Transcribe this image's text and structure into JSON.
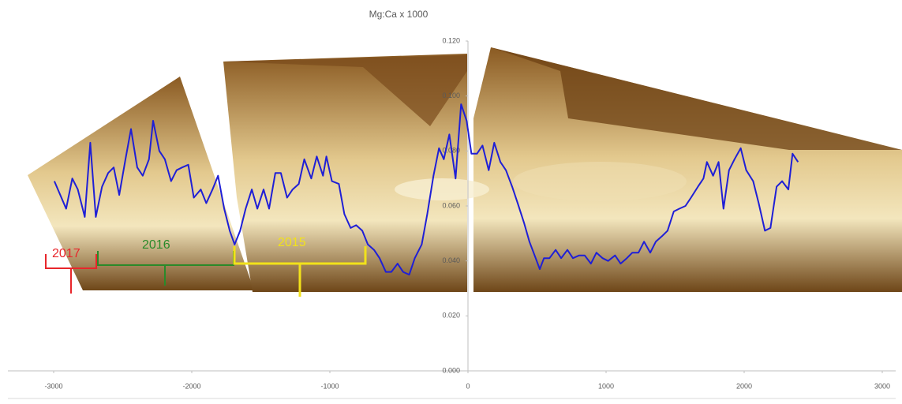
{
  "chart_data": {
    "type": "line",
    "title": "Mg:Ca x 1000",
    "x": [
      -2995,
      -2910,
      -2865,
      -2825,
      -2775,
      -2735,
      -2695,
      -2650,
      -2605,
      -2565,
      -2525,
      -2480,
      -2440,
      -2395,
      -2355,
      -2310,
      -2280,
      -2235,
      -2195,
      -2150,
      -2110,
      -2070,
      -2025,
      -1985,
      -1935,
      -1895,
      -1850,
      -1810,
      -1765,
      -1725,
      -1690,
      -1650,
      -1610,
      -1565,
      -1525,
      -1480,
      -1440,
      -1395,
      -1355,
      -1310,
      -1270,
      -1225,
      -1185,
      -1135,
      -1095,
      -1050,
      -1025,
      -985,
      -935,
      -895,
      -850,
      -810,
      -765,
      -725,
      -680,
      -640,
      -595,
      -555,
      -510,
      -470,
      -425,
      -385,
      -335,
      -295,
      -250,
      -210,
      -175,
      -135,
      -90,
      -50,
      -10,
      25,
      65,
      105,
      150,
      190,
      235,
      275,
      320,
      360,
      405,
      445,
      490,
      520,
      550,
      590,
      635,
      675,
      720,
      760,
      805,
      845,
      890,
      930,
      975,
      1015,
      1065,
      1105,
      1150,
      1190,
      1235,
      1275,
      1320,
      1360,
      1405,
      1445,
      1490,
      1530,
      1575,
      1615,
      1665,
      1705,
      1730,
      1775,
      1815,
      1850,
      1890,
      1930,
      1975,
      2015,
      2065,
      2105,
      2150,
      2190,
      2235,
      2275,
      2320,
      2350,
      2390
    ],
    "series": [
      {
        "color": "#1f1fd6",
        "values": [
          0.069,
          0.059,
          0.07,
          0.066,
          0.056,
          0.083,
          0.056,
          0.067,
          0.072,
          0.074,
          0.064,
          0.077,
          0.088,
          0.074,
          0.071,
          0.077,
          0.091,
          0.08,
          0.077,
          0.069,
          0.073,
          0.074,
          0.075,
          0.063,
          0.066,
          0.061,
          0.066,
          0.071,
          0.059,
          0.051,
          0.046,
          0.051,
          0.059,
          0.066,
          0.059,
          0.066,
          0.059,
          0.072,
          0.072,
          0.063,
          0.066,
          0.068,
          0.077,
          0.07,
          0.078,
          0.071,
          0.078,
          0.069,
          0.068,
          0.057,
          0.052,
          0.053,
          0.051,
          0.046,
          0.044,
          0.041,
          0.036,
          0.036,
          0.039,
          0.036,
          0.035,
          0.041,
          0.046,
          0.057,
          0.071,
          0.081,
          0.077,
          0.086,
          0.07,
          0.097,
          0.091,
          0.079,
          0.079,
          0.082,
          0.073,
          0.083,
          0.076,
          0.073,
          0.067,
          0.061,
          0.054,
          0.047,
          0.041,
          0.037,
          0.041,
          0.041,
          0.044,
          0.041,
          0.044,
          0.041,
          0.042,
          0.042,
          0.039,
          0.043,
          0.041,
          0.04,
          0.042,
          0.039,
          0.041,
          0.043,
          0.043,
          0.047,
          0.043,
          0.047,
          0.049,
          0.051,
          0.058,
          0.059,
          0.06,
          0.063,
          0.067,
          0.07,
          0.076,
          0.071,
          0.076,
          0.059,
          0.073,
          0.077,
          0.081,
          0.073,
          0.069,
          0.061,
          0.051,
          0.052,
          0.067,
          0.069,
          0.066,
          0.079,
          0.076
        ]
      }
    ],
    "xlim": [
      -3000,
      3000
    ],
    "xticks": [
      -3000,
      -2000,
      -1000,
      0,
      1000,
      2000,
      3000
    ],
    "ylim": [
      0,
      0.12
    ],
    "yticks": [
      {
        "value": 0,
        "label": "0.000"
      },
      {
        "value": 0.02,
        "label": "0.020"
      },
      {
        "value": 0.04,
        "label": "0.040"
      },
      {
        "value": 0.06,
        "label": "0.060"
      },
      {
        "value": 0.08,
        "label": "0.080"
      },
      {
        "value": 0.1,
        "label": "0.100"
      },
      {
        "value": 0.12,
        "label": "0.120"
      }
    ],
    "annotations": [
      {
        "text": "2017",
        "color": "#e8262b"
      },
      {
        "text": "2016",
        "color": "#2a8a2a"
      },
      {
        "text": "2015",
        "color": "#f2e21a"
      }
    ]
  }
}
